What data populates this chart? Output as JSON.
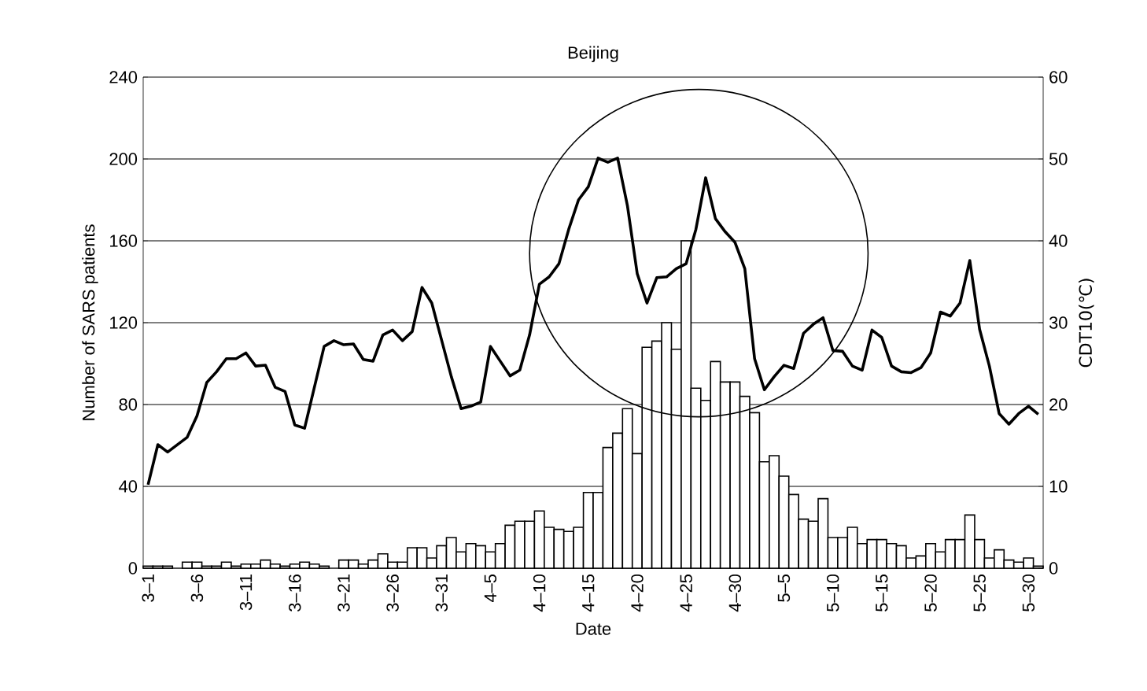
{
  "chart_data": {
    "type": "bar",
    "title": "Beijing",
    "xlabel": "Date",
    "ylabel": "Number of SARS patients",
    "y2label": "CDT10(℃)",
    "categories": [
      "3–1",
      null,
      null,
      null,
      null,
      "3–6",
      null,
      null,
      null,
      null,
      "3–11",
      null,
      null,
      null,
      null,
      "3–16",
      null,
      null,
      null,
      null,
      "3–21",
      null,
      null,
      null,
      null,
      "3–26",
      null,
      null,
      null,
      null,
      "3–31",
      null,
      null,
      null,
      null,
      "4–5",
      null,
      null,
      null,
      null,
      "4–10",
      null,
      null,
      null,
      null,
      "4–15",
      null,
      null,
      null,
      null,
      "4–20",
      null,
      null,
      null,
      null,
      "4–25",
      null,
      null,
      null,
      null,
      "4–30",
      null,
      null,
      null,
      null,
      "5–5",
      null,
      null,
      null,
      null,
      "5–10",
      null,
      null,
      null,
      null,
      "5–15",
      null,
      null,
      null,
      null,
      "5–20",
      null,
      null,
      null,
      null,
      "5–25",
      null,
      null,
      null,
      null,
      "5–30",
      null
    ],
    "series": [
      {
        "color": "#ffffff",
        "values": [
          1,
          1,
          1,
          0,
          3,
          3,
          1,
          1,
          3,
          1,
          2,
          2,
          4,
          2,
          1,
          2,
          3,
          2,
          1,
          0,
          4,
          4,
          2,
          4,
          7,
          3,
          3,
          10,
          10,
          5,
          11,
          15,
          8,
          12,
          11,
          8,
          12,
          21,
          23,
          23,
          28,
          20,
          19,
          18,
          20,
          37,
          37,
          59,
          66,
          78,
          56,
          108,
          111,
          120,
          107,
          160,
          88,
          82,
          101,
          91,
          91,
          84,
          76,
          52,
          55,
          45,
          36,
          24,
          23,
          34,
          15,
          15,
          20,
          12,
          14,
          14,
          12,
          11,
          5,
          6,
          12,
          8,
          14,
          14,
          26,
          14,
          5,
          9,
          4,
          3,
          5,
          1
        ]
      },
      {
        "type": "line",
        "axis": "y2",
        "color": "#000000",
        "values": [
          10.2,
          15.1,
          14.2,
          15.1,
          16,
          18.6,
          22.7,
          24,
          25.6,
          25.6,
          26.3,
          24.7,
          24.8,
          22.1,
          21.6,
          17.5,
          17.1,
          22.1,
          27.1,
          27.8,
          27.3,
          27.4,
          25.5,
          25.3,
          28.5,
          29.1,
          27.8,
          28.9,
          34.3,
          32.4,
          27.9,
          23.4,
          19.5,
          19.8,
          20.3,
          27.1,
          25.3,
          23.5,
          24.2,
          28.5,
          34.7,
          35.6,
          37.2,
          41.4,
          45,
          46.6,
          50.1,
          49.6,
          50.1,
          44.3,
          36,
          32.4,
          35.5,
          35.6,
          36.6,
          37.2,
          41.4,
          47.7,
          42.7,
          41.1,
          39.8,
          36.6,
          25.6,
          21.8,
          23.4,
          24.8,
          24.4,
          28.7,
          29.8,
          30.6,
          26.6,
          26.5,
          24.7,
          24.2,
          29.1,
          28.2,
          24.7,
          24,
          23.9,
          24.5,
          26.3,
          31.3,
          30.8,
          32.4,
          37.6,
          29.2,
          24.7,
          18.9,
          17.6,
          18.9,
          19.8,
          18.8
        ]
      }
    ],
    "ylim": [
      0,
      240
    ],
    "yticks": [
      0,
      40,
      80,
      120,
      160,
      200,
      240
    ],
    "y2lim": [
      0,
      60
    ],
    "y2ticks": [
      0,
      10,
      20,
      30,
      40,
      50,
      60
    ],
    "grid": "y"
  }
}
